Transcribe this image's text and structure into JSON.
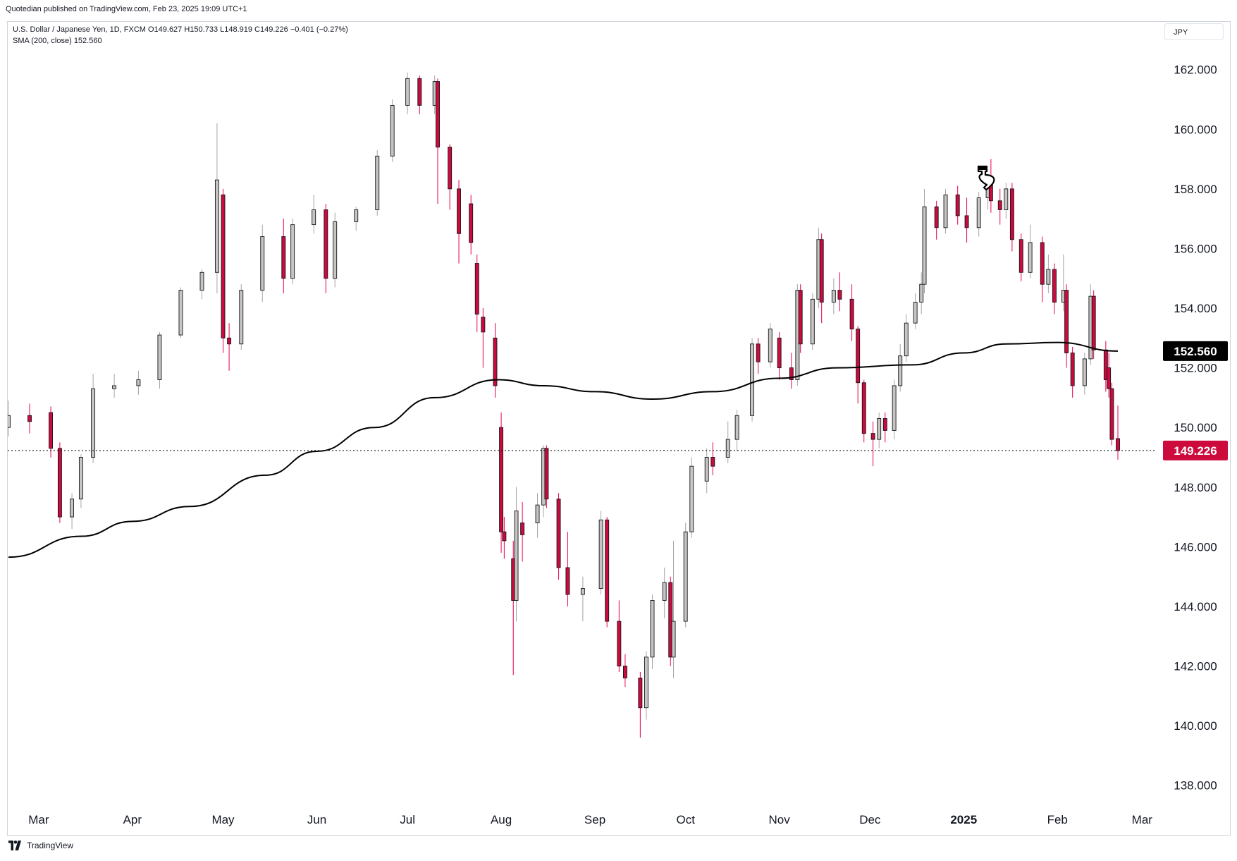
{
  "header": {
    "published": "Quotedian published on TradingView.com, Feb 23, 2025 19:09 UTC+1",
    "legend_line1": "U.S. Dollar / Japanese Yen, 1D, FXCM  O149.627  H150.733  L148.919  C149.226  −0.401 (−0.27%)",
    "legend_line2": "SMA (200, close)  152.560",
    "currency": "JPY"
  },
  "footer": {
    "brand": "TradingView"
  },
  "colors": {
    "up_body": "#c8c5c0",
    "down_body": "#cc0a3c",
    "outline": "#131722",
    "up_wick": "#a8a49f",
    "down_wick": "#e8004a",
    "sma": "#000000",
    "last_price": "#cc0a3c",
    "sma_tag": "#000000"
  },
  "chart_data": {
    "type": "candlestick",
    "instrument": "U.S. Dollar / Japanese Yen",
    "timeframe": "1D",
    "source": "FXCM",
    "ylim": [
      137,
      163.6
    ],
    "y_ticks": [
      "138.000",
      "140.000",
      "142.000",
      "144.000",
      "146.000",
      "148.000",
      "150.000",
      "152.000",
      "154.000",
      "156.000",
      "158.000",
      "160.000",
      "162.000"
    ],
    "x_labels": [
      "Mar",
      "Apr",
      "May",
      "Jun",
      "Jul",
      "Aug",
      "Sep",
      "Oct",
      "Nov",
      "Dec",
      "2025",
      "Feb",
      "Mar"
    ],
    "x_labels_bold": [
      "2025"
    ],
    "x_label_dates": [
      "2024-03-01",
      "2024-04-01",
      "2024-05-01",
      "2024-06-01",
      "2024-07-01",
      "2024-08-01",
      "2024-09-01",
      "2024-10-01",
      "2024-11-01",
      "2024-12-01",
      "2025-01-01",
      "2025-02-01",
      "2025-03-01"
    ],
    "last_price": 149.226,
    "last_price_label": "149.226",
    "sma_label": "152.560",
    "sma_name": "SMA (200, close)",
    "sma": [
      {
        "date": "2024-02-20",
        "v": 145.65
      },
      {
        "date": "2024-03-15",
        "v": 146.35
      },
      {
        "date": "2024-04-01",
        "v": 146.85
      },
      {
        "date": "2024-04-20",
        "v": 147.35
      },
      {
        "date": "2024-05-15",
        "v": 148.4
      },
      {
        "date": "2024-06-01",
        "v": 149.2
      },
      {
        "date": "2024-06-20",
        "v": 150.0
      },
      {
        "date": "2024-07-10",
        "v": 151.0
      },
      {
        "date": "2024-07-31",
        "v": 151.6
      },
      {
        "date": "2024-08-15",
        "v": 151.4
      },
      {
        "date": "2024-09-01",
        "v": 151.2
      },
      {
        "date": "2024-09-20",
        "v": 150.95
      },
      {
        "date": "2024-10-10",
        "v": 151.2
      },
      {
        "date": "2024-11-01",
        "v": 151.65
      },
      {
        "date": "2024-11-20",
        "v": 152.0
      },
      {
        "date": "2024-12-15",
        "v": 152.1
      },
      {
        "date": "2025-01-01",
        "v": 152.5
      },
      {
        "date": "2025-01-15",
        "v": 152.8
      },
      {
        "date": "2025-02-01",
        "v": 152.85
      },
      {
        "date": "2025-02-21",
        "v": 152.56
      }
    ],
    "candles": [
      {
        "date": "2024-02-20",
        "o": 150.0,
        "h": 150.9,
        "c": 150.4,
        "l": 149.7
      },
      {
        "date": "2024-02-27",
        "o": 150.4,
        "h": 150.8,
        "c": 150.2,
        "l": 149.8
      },
      {
        "date": "2024-03-05",
        "o": 150.5,
        "h": 150.7,
        "c": 149.3,
        "l": 149.0
      },
      {
        "date": "2024-03-08",
        "o": 149.3,
        "h": 149.5,
        "c": 147.0,
        "l": 146.8
      },
      {
        "date": "2024-03-12",
        "o": 147.0,
        "h": 147.8,
        "c": 147.6,
        "l": 146.6
      },
      {
        "date": "2024-03-15",
        "o": 147.6,
        "h": 149.1,
        "c": 149.0,
        "l": 147.3
      },
      {
        "date": "2024-03-19",
        "o": 149.0,
        "h": 151.8,
        "c": 151.3,
        "l": 148.8
      },
      {
        "date": "2024-03-26",
        "o": 151.3,
        "h": 151.8,
        "c": 151.4,
        "l": 151.0
      },
      {
        "date": "2024-04-03",
        "o": 151.4,
        "h": 151.9,
        "c": 151.6,
        "l": 151.1
      },
      {
        "date": "2024-04-10",
        "o": 151.6,
        "h": 153.2,
        "c": 153.1,
        "l": 151.3
      },
      {
        "date": "2024-04-17",
        "o": 153.1,
        "h": 154.7,
        "c": 154.6,
        "l": 153.0
      },
      {
        "date": "2024-04-24",
        "o": 154.6,
        "h": 155.3,
        "c": 155.2,
        "l": 154.3
      },
      {
        "date": "2024-04-29",
        "o": 155.2,
        "h": 160.2,
        "c": 158.3,
        "l": 154.5
      },
      {
        "date": "2024-05-01",
        "o": 157.8,
        "h": 158.0,
        "c": 153.0,
        "l": 152.5
      },
      {
        "date": "2024-05-03",
        "o": 153.0,
        "h": 153.5,
        "c": 152.8,
        "l": 151.9
      },
      {
        "date": "2024-05-07",
        "o": 152.8,
        "h": 154.8,
        "c": 154.6,
        "l": 152.6
      },
      {
        "date": "2024-05-14",
        "o": 154.6,
        "h": 156.8,
        "c": 156.4,
        "l": 154.2
      },
      {
        "date": "2024-05-21",
        "o": 156.4,
        "h": 157.0,
        "c": 155.0,
        "l": 154.5
      },
      {
        "date": "2024-05-24",
        "o": 155.0,
        "h": 157.0,
        "c": 156.8,
        "l": 154.8
      },
      {
        "date": "2024-05-31",
        "o": 156.8,
        "h": 157.8,
        "c": 157.3,
        "l": 156.5
      },
      {
        "date": "2024-06-04",
        "o": 157.3,
        "h": 157.5,
        "c": 155.0,
        "l": 154.5
      },
      {
        "date": "2024-06-07",
        "o": 155.0,
        "h": 157.2,
        "c": 156.9,
        "l": 154.7
      },
      {
        "date": "2024-06-14",
        "o": 156.9,
        "h": 157.4,
        "c": 157.3,
        "l": 156.6
      },
      {
        "date": "2024-06-21",
        "o": 157.3,
        "h": 159.3,
        "c": 159.1,
        "l": 157.1
      },
      {
        "date": "2024-06-26",
        "o": 159.1,
        "h": 161.0,
        "c": 160.8,
        "l": 158.9
      },
      {
        "date": "2024-07-01",
        "o": 160.8,
        "h": 161.9,
        "c": 161.7,
        "l": 160.5
      },
      {
        "date": "2024-07-05",
        "o": 161.7,
        "h": 161.8,
        "c": 160.8,
        "l": 160.5
      },
      {
        "date": "2024-07-10",
        "o": 160.8,
        "h": 161.8,
        "c": 161.6,
        "l": 160.5
      },
      {
        "date": "2024-07-11",
        "o": 161.6,
        "h": 161.7,
        "c": 159.4,
        "l": 157.5
      },
      {
        "date": "2024-07-15",
        "o": 159.4,
        "h": 159.5,
        "c": 158.0,
        "l": 157.3
      },
      {
        "date": "2024-07-18",
        "o": 158.0,
        "h": 158.3,
        "c": 156.5,
        "l": 155.5
      },
      {
        "date": "2024-07-22",
        "o": 157.5,
        "h": 157.8,
        "c": 156.2,
        "l": 155.8
      },
      {
        "date": "2024-07-24",
        "o": 155.5,
        "h": 155.8,
        "c": 153.8,
        "l": 153.2
      },
      {
        "date": "2024-07-26",
        "o": 153.7,
        "h": 154.0,
        "c": 153.2,
        "l": 152.0
      },
      {
        "date": "2024-07-30",
        "o": 153.0,
        "h": 153.5,
        "c": 151.4,
        "l": 151.0
      },
      {
        "date": "2024-08-01",
        "o": 150.0,
        "h": 150.5,
        "c": 146.5,
        "l": 145.8
      },
      {
        "date": "2024-08-02",
        "o": 146.5,
        "h": 147.0,
        "c": 146.2,
        "l": 145.6
      },
      {
        "date": "2024-08-05",
        "o": 145.6,
        "h": 146.2,
        "c": 144.2,
        "l": 141.7
      },
      {
        "date": "2024-08-06",
        "o": 144.2,
        "h": 148.0,
        "c": 147.2,
        "l": 143.5
      },
      {
        "date": "2024-08-08",
        "o": 146.8,
        "h": 147.5,
        "c": 146.4,
        "l": 145.5
      },
      {
        "date": "2024-08-13",
        "o": 146.8,
        "h": 147.8,
        "c": 147.4,
        "l": 146.3
      },
      {
        "date": "2024-08-15",
        "o": 147.4,
        "h": 149.4,
        "c": 149.3,
        "l": 147.0
      },
      {
        "date": "2024-08-16",
        "o": 149.3,
        "h": 149.4,
        "c": 147.6,
        "l": 147.3
      },
      {
        "date": "2024-08-20",
        "o": 147.6,
        "h": 147.8,
        "c": 145.3,
        "l": 144.9
      },
      {
        "date": "2024-08-23",
        "o": 145.3,
        "h": 146.5,
        "c": 144.4,
        "l": 144.0
      },
      {
        "date": "2024-08-28",
        "o": 144.4,
        "h": 145.0,
        "c": 144.6,
        "l": 143.5
      },
      {
        "date": "2024-09-03",
        "o": 144.6,
        "h": 147.2,
        "c": 146.9,
        "l": 144.4
      },
      {
        "date": "2024-09-05",
        "o": 146.9,
        "h": 147.0,
        "c": 143.5,
        "l": 143.3
      },
      {
        "date": "2024-09-09",
        "o": 143.5,
        "h": 144.2,
        "c": 142.0,
        "l": 141.8
      },
      {
        "date": "2024-09-11",
        "o": 142.0,
        "h": 142.4,
        "c": 141.6,
        "l": 141.3
      },
      {
        "date": "2024-09-16",
        "o": 141.6,
        "h": 141.8,
        "c": 140.6,
        "l": 139.6
      },
      {
        "date": "2024-09-18",
        "o": 140.6,
        "h": 142.5,
        "c": 142.3,
        "l": 140.2
      },
      {
        "date": "2024-09-20",
        "o": 142.3,
        "h": 144.4,
        "c": 144.2,
        "l": 141.9
      },
      {
        "date": "2024-09-24",
        "o": 144.2,
        "h": 145.3,
        "c": 144.8,
        "l": 143.6
      },
      {
        "date": "2024-09-26",
        "o": 144.8,
        "h": 145.0,
        "c": 142.3,
        "l": 142.0
      },
      {
        "date": "2024-09-27",
        "o": 142.3,
        "h": 146.2,
        "c": 143.5,
        "l": 141.6
      },
      {
        "date": "2024-10-01",
        "o": 143.5,
        "h": 146.8,
        "c": 146.5,
        "l": 143.3
      },
      {
        "date": "2024-10-03",
        "o": 146.5,
        "h": 149.0,
        "c": 148.7,
        "l": 146.3
      },
      {
        "date": "2024-10-08",
        "o": 148.2,
        "h": 149.3,
        "c": 149.0,
        "l": 147.8
      },
      {
        "date": "2024-10-10",
        "o": 149.0,
        "h": 149.5,
        "c": 148.7,
        "l": 148.4
      },
      {
        "date": "2024-10-15",
        "o": 149.0,
        "h": 150.2,
        "c": 149.6,
        "l": 148.8
      },
      {
        "date": "2024-10-18",
        "o": 149.6,
        "h": 150.6,
        "c": 150.4,
        "l": 149.2
      },
      {
        "date": "2024-10-23",
        "o": 150.4,
        "h": 153.0,
        "c": 152.8,
        "l": 150.2
      },
      {
        "date": "2024-10-25",
        "o": 152.8,
        "h": 153.0,
        "c": 152.2,
        "l": 151.8
      },
      {
        "date": "2024-10-29",
        "o": 152.2,
        "h": 153.5,
        "c": 153.3,
        "l": 152.0
      },
      {
        "date": "2024-11-01",
        "o": 153.0,
        "h": 153.2,
        "c": 152.0,
        "l": 151.6
      },
      {
        "date": "2024-11-05",
        "o": 152.0,
        "h": 152.5,
        "c": 151.6,
        "l": 151.3
      },
      {
        "date": "2024-11-07",
        "o": 151.6,
        "h": 154.8,
        "c": 154.6,
        "l": 151.4
      },
      {
        "date": "2024-11-08",
        "o": 154.6,
        "h": 154.8,
        "c": 152.8,
        "l": 152.5
      },
      {
        "date": "2024-11-12",
        "o": 152.8,
        "h": 154.5,
        "c": 154.3,
        "l": 152.6
      },
      {
        "date": "2024-11-14",
        "o": 154.3,
        "h": 156.7,
        "c": 156.3,
        "l": 154.0
      },
      {
        "date": "2024-11-15",
        "o": 156.3,
        "h": 156.5,
        "c": 154.2,
        "l": 153.5
      },
      {
        "date": "2024-11-19",
        "o": 154.2,
        "h": 155.0,
        "c": 154.6,
        "l": 153.8
      },
      {
        "date": "2024-11-21",
        "o": 154.6,
        "h": 155.2,
        "c": 154.3,
        "l": 153.9
      },
      {
        "date": "2024-11-25",
        "o": 154.3,
        "h": 154.8,
        "c": 153.3,
        "l": 152.9
      },
      {
        "date": "2024-11-27",
        "o": 153.3,
        "h": 153.4,
        "c": 151.5,
        "l": 150.8
      },
      {
        "date": "2024-11-29",
        "o": 151.5,
        "h": 151.6,
        "c": 149.8,
        "l": 149.5
      },
      {
        "date": "2024-12-02",
        "o": 149.8,
        "h": 150.2,
        "c": 149.6,
        "l": 148.7
      },
      {
        "date": "2024-12-04",
        "o": 149.6,
        "h": 150.5,
        "c": 150.3,
        "l": 149.3
      },
      {
        "date": "2024-12-06",
        "o": 150.3,
        "h": 150.5,
        "c": 149.9,
        "l": 149.5
      },
      {
        "date": "2024-12-09",
        "o": 149.9,
        "h": 151.6,
        "c": 151.4,
        "l": 149.6
      },
      {
        "date": "2024-12-11",
        "o": 151.4,
        "h": 152.8,
        "c": 152.4,
        "l": 151.2
      },
      {
        "date": "2024-12-13",
        "o": 152.4,
        "h": 153.8,
        "c": 153.5,
        "l": 152.2
      },
      {
        "date": "2024-12-16",
        "o": 153.5,
        "h": 154.5,
        "c": 154.2,
        "l": 153.3
      },
      {
        "date": "2024-12-18",
        "o": 154.2,
        "h": 155.2,
        "c": 154.8,
        "l": 153.8
      },
      {
        "date": "2024-12-19",
        "o": 154.8,
        "h": 158.0,
        "c": 157.4,
        "l": 154.5
      },
      {
        "date": "2024-12-23",
        "o": 157.4,
        "h": 157.6,
        "c": 156.7,
        "l": 156.3
      },
      {
        "date": "2024-12-26",
        "o": 156.7,
        "h": 158.0,
        "c": 157.8,
        "l": 156.5
      },
      {
        "date": "2024-12-30",
        "o": 157.8,
        "h": 158.1,
        "c": 157.1,
        "l": 156.8
      },
      {
        "date": "2025-01-02",
        "o": 157.1,
        "h": 157.7,
        "c": 156.7,
        "l": 156.2
      },
      {
        "date": "2025-01-06",
        "o": 156.7,
        "h": 157.9,
        "c": 157.7,
        "l": 156.4
      },
      {
        "date": "2025-01-09",
        "o": 157.7,
        "h": 158.5,
        "c": 158.2,
        "l": 157.3
      },
      {
        "date": "2025-01-10",
        "o": 158.2,
        "h": 159.0,
        "c": 157.6,
        "l": 157.2
      },
      {
        "date": "2025-01-13",
        "o": 157.6,
        "h": 158.0,
        "c": 157.3,
        "l": 156.8
      },
      {
        "date": "2025-01-15",
        "o": 157.3,
        "h": 158.2,
        "c": 158.0,
        "l": 157.0
      },
      {
        "date": "2025-01-17",
        "o": 158.0,
        "h": 158.2,
        "c": 156.3,
        "l": 155.9
      },
      {
        "date": "2025-01-20",
        "o": 156.3,
        "h": 156.5,
        "c": 155.2,
        "l": 154.9
      },
      {
        "date": "2025-01-23",
        "o": 155.2,
        "h": 156.8,
        "c": 156.2,
        "l": 155.0
      },
      {
        "date": "2025-01-27",
        "o": 156.2,
        "h": 156.4,
        "c": 154.8,
        "l": 154.2
      },
      {
        "date": "2025-01-29",
        "o": 154.8,
        "h": 155.8,
        "c": 155.3,
        "l": 154.5
      },
      {
        "date": "2025-01-31",
        "o": 155.3,
        "h": 155.5,
        "c": 154.2,
        "l": 153.8
      },
      {
        "date": "2025-02-03",
        "o": 154.2,
        "h": 155.8,
        "c": 154.6,
        "l": 153.9
      },
      {
        "date": "2025-02-04",
        "o": 154.6,
        "h": 154.8,
        "c": 152.5,
        "l": 152.0
      },
      {
        "date": "2025-02-06",
        "o": 152.5,
        "h": 152.7,
        "c": 151.4,
        "l": 151.0
      },
      {
        "date": "2025-02-10",
        "o": 151.4,
        "h": 152.5,
        "c": 152.3,
        "l": 151.1
      },
      {
        "date": "2025-02-12",
        "o": 152.3,
        "h": 154.8,
        "c": 154.4,
        "l": 152.1
      },
      {
        "date": "2025-02-13",
        "o": 154.4,
        "h": 154.6,
        "c": 152.6,
        "l": 152.3
      },
      {
        "date": "2025-02-17",
        "o": 152.6,
        "h": 152.9,
        "c": 151.6,
        "l": 151.2
      },
      {
        "date": "2025-02-18",
        "o": 152.0,
        "h": 152.5,
        "c": 151.3,
        "l": 151.0
      },
      {
        "date": "2025-02-19",
        "o": 151.3,
        "h": 151.5,
        "c": 149.6,
        "l": 149.4
      },
      {
        "date": "2025-02-21",
        "o": 149.627,
        "h": 150.733,
        "c": 149.226,
        "l": 148.919
      }
    ]
  }
}
